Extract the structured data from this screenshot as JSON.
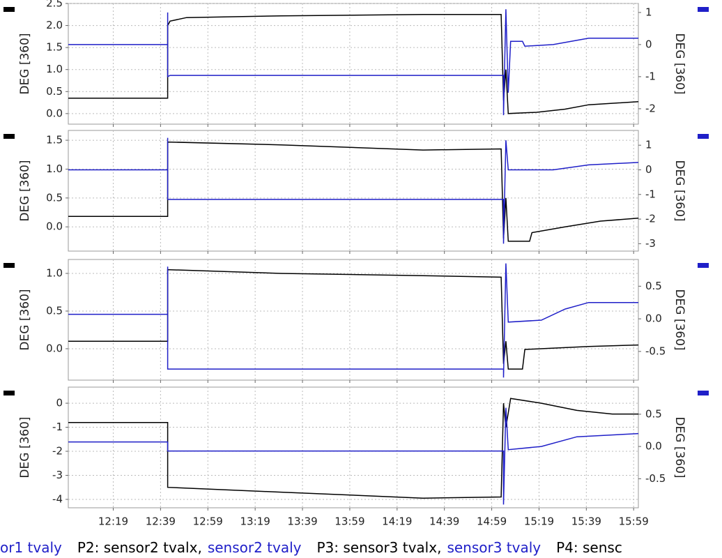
{
  "chart_data": [
    {
      "type": "line",
      "ylabel": "DEG [360]",
      "y2label": "DEG [360]",
      "xlim": [
        "12:00",
        "16:01"
      ],
      "xticks": [
        "12:19",
        "12:39",
        "12:59",
        "13:19",
        "13:39",
        "13:59",
        "14:19",
        "14:39",
        "14:59",
        "15:19",
        "15:39",
        "15:59"
      ],
      "show_xtick_labels": false,
      "grid": true,
      "ylim": [
        -0.24,
        2.5
      ],
      "yticks": [
        {
          "value": 0,
          "label": "0.0"
        },
        0.5,
        {
          "value": 1,
          "label": "1.0"
        },
        1.5,
        {
          "value": 2,
          "label": "2.0"
        },
        2.5
      ],
      "y2lim": [
        -2.48,
        1.28
      ],
      "y2ticks": [
        -2,
        -1,
        0,
        1
      ],
      "series": [
        {
          "color": "#000000",
          "x": [
            "12:00",
            "12:42",
            "12:42",
            "12:43",
            "12:50",
            "13:30",
            "14:30",
            "15:03",
            "15:04",
            "15:05",
            "15:06",
            "15:18",
            "15:30",
            "15:40",
            "16:01"
          ],
          "values": [
            0.35,
            0.35,
            2.0,
            2.1,
            2.18,
            2.22,
            2.25,
            2.25,
            0.3,
            1.0,
            0,
            0.03,
            0.1,
            0.2,
            0.27
          ]
        },
        {
          "color": "#1f1fc8",
          "axis": "y2",
          "x": [
            "12:00",
            "12:42",
            "12:42",
            "12:42",
            "12:43",
            "15:04",
            "15:04",
            "15:05",
            "15:06",
            "15:07",
            "15:12",
            "15:13",
            "15:25",
            "15:40",
            "16:01"
          ],
          "values": [
            0,
            0,
            1.0,
            -1.0,
            -0.96,
            -0.96,
            -2.2,
            1.1,
            -1.5,
            0.1,
            0.1,
            -0.05,
            0.0,
            0.2,
            0.2
          ]
        }
      ]
    },
    {
      "type": "line",
      "ylabel": "DEG [360]",
      "y2label": "DEG [360]",
      "xlim": [
        "12:00",
        "16:01"
      ],
      "xticks": [
        "12:19",
        "12:39",
        "12:59",
        "13:19",
        "13:39",
        "13:59",
        "14:19",
        "14:39",
        "14:59",
        "15:19",
        "15:39",
        "15:59"
      ],
      "show_xtick_labels": false,
      "grid": true,
      "ylim": [
        -0.42,
        1.67
      ],
      "yticks": [
        {
          "value": 0,
          "label": "0.0"
        },
        0.5,
        {
          "value": 1,
          "label": "1.0"
        },
        1.5
      ],
      "y2lim": [
        -3.3,
        1.6
      ],
      "y2ticks": [
        -3,
        -2,
        -1,
        0,
        1
      ],
      "series": [
        {
          "color": "#000000",
          "x": [
            "12:00",
            "12:42",
            "12:42",
            "13:30",
            "14:30",
            "15:03",
            "15:04",
            "15:05",
            "15:06",
            "15:15",
            "15:16",
            "15:30",
            "15:45",
            "16:01"
          ],
          "values": [
            0.18,
            0.18,
            1.47,
            1.42,
            1.33,
            1.35,
            -0.2,
            0.5,
            -0.25,
            -0.25,
            -0.1,
            0.0,
            0.1,
            0.15
          ]
        },
        {
          "color": "#1f1fc8",
          "axis": "y2",
          "x": [
            "12:00",
            "12:42",
            "12:42",
            "12:42",
            "15:04",
            "15:04",
            "15:05",
            "15:06",
            "15:25",
            "15:40",
            "16:01"
          ],
          "values": [
            0,
            0,
            1.3,
            -1.2,
            -1.2,
            -3.0,
            1.2,
            0,
            0,
            0.2,
            0.3
          ]
        }
      ]
    },
    {
      "type": "line",
      "ylabel": "DEG [360]",
      "y2label": "DEG [360]",
      "xlim": [
        "12:00",
        "16:01"
      ],
      "xticks": [
        "12:19",
        "12:39",
        "12:59",
        "13:19",
        "13:39",
        "13:59",
        "14:19",
        "14:39",
        "14:59",
        "15:19",
        "15:39",
        "15:59"
      ],
      "show_xtick_labels": false,
      "grid": true,
      "ylim": [
        -0.417,
        1.185
      ],
      "yticks": [
        {
          "value": 0,
          "label": "0.0"
        },
        0.5,
        {
          "value": 1,
          "label": "1.0"
        }
      ],
      "y2lim": [
        -0.94,
        0.91
      ],
      "y2ticks": [
        -0.5,
        {
          "value": 0,
          "label": "0.0"
        },
        0.5
      ],
      "series": [
        {
          "color": "#000000",
          "x": [
            "12:00",
            "12:42",
            "12:42",
            "13:30",
            "14:30",
            "15:03",
            "15:04",
            "15:05",
            "15:06",
            "15:12",
            "15:13",
            "15:40",
            "16:01"
          ],
          "values": [
            0.1,
            0.1,
            1.05,
            1.0,
            0.97,
            0.95,
            -0.2,
            0.1,
            -0.27,
            -0.27,
            -0.01,
            0.03,
            0.05
          ]
        },
        {
          "color": "#1f1fc8",
          "axis": "y2",
          "x": [
            "12:00",
            "12:42",
            "12:42",
            "12:42",
            "15:04",
            "15:04",
            "15:05",
            "15:06",
            "15:20",
            "15:30",
            "15:40",
            "16:01"
          ],
          "values": [
            0.07,
            0.07,
            0.8,
            -0.77,
            -0.77,
            -0.9,
            0.85,
            -0.05,
            -0.02,
            0.15,
            0.25,
            0.25
          ]
        }
      ]
    },
    {
      "type": "line",
      "ylabel": "DEG [360]",
      "y2label": "DEG [360]",
      "xlim": [
        "12:00",
        "16:01"
      ],
      "xticks": [
        "12:19",
        "12:39",
        "12:59",
        "13:19",
        "13:39",
        "13:59",
        "14:19",
        "14:39",
        "14:59",
        "15:19",
        "15:39",
        "15:59"
      ],
      "show_xtick_labels": true,
      "grid": true,
      "ylim": [
        -4.35,
        0.67
      ],
      "yticks": [
        -4,
        -3,
        -2,
        -1,
        0
      ],
      "y2lim": [
        -0.95,
        0.92
      ],
      "y2ticks": [
        -0.5,
        {
          "value": 0,
          "label": "0.0"
        },
        0.5
      ],
      "series": [
        {
          "color": "#000000",
          "x": [
            "12:00",
            "12:42",
            "12:42",
            "13:30",
            "14:30",
            "15:03",
            "15:04",
            "15:05",
            "15:07",
            "15:20",
            "15:35",
            "15:50",
            "16:01"
          ],
          "values": [
            -0.8,
            -0.8,
            -3.5,
            -3.7,
            -3.95,
            -3.9,
            0.0,
            -1.0,
            0.2,
            0.0,
            -0.3,
            -0.45,
            -0.45
          ]
        },
        {
          "color": "#1f1fc8",
          "axis": "y2",
          "x": [
            "12:00",
            "12:42",
            "12:42",
            "15:04",
            "15:04",
            "15:05",
            "15:06",
            "15:20",
            "15:35",
            "16:01"
          ],
          "values": [
            0.07,
            0.07,
            -0.07,
            -0.07,
            -0.9,
            0.6,
            -0.05,
            0.0,
            0.15,
            0.2
          ]
        }
      ]
    }
  ],
  "footer": [
    {
      "text": "or1 tvaly",
      "color": "#1f1fc8"
    },
    {
      "text": "P2: sensor2 tvalx,",
      "color": "#000000"
    },
    {
      "text": "sensor2 tvaly",
      "color": "#1f1fc8"
    },
    {
      "text": "P3: sensor3 tvalx,",
      "color": "#000000"
    },
    {
      "text": "sensor3 tvaly",
      "color": "#1f1fc8"
    },
    {
      "text": "P4: sensc",
      "color": "#000000"
    }
  ]
}
